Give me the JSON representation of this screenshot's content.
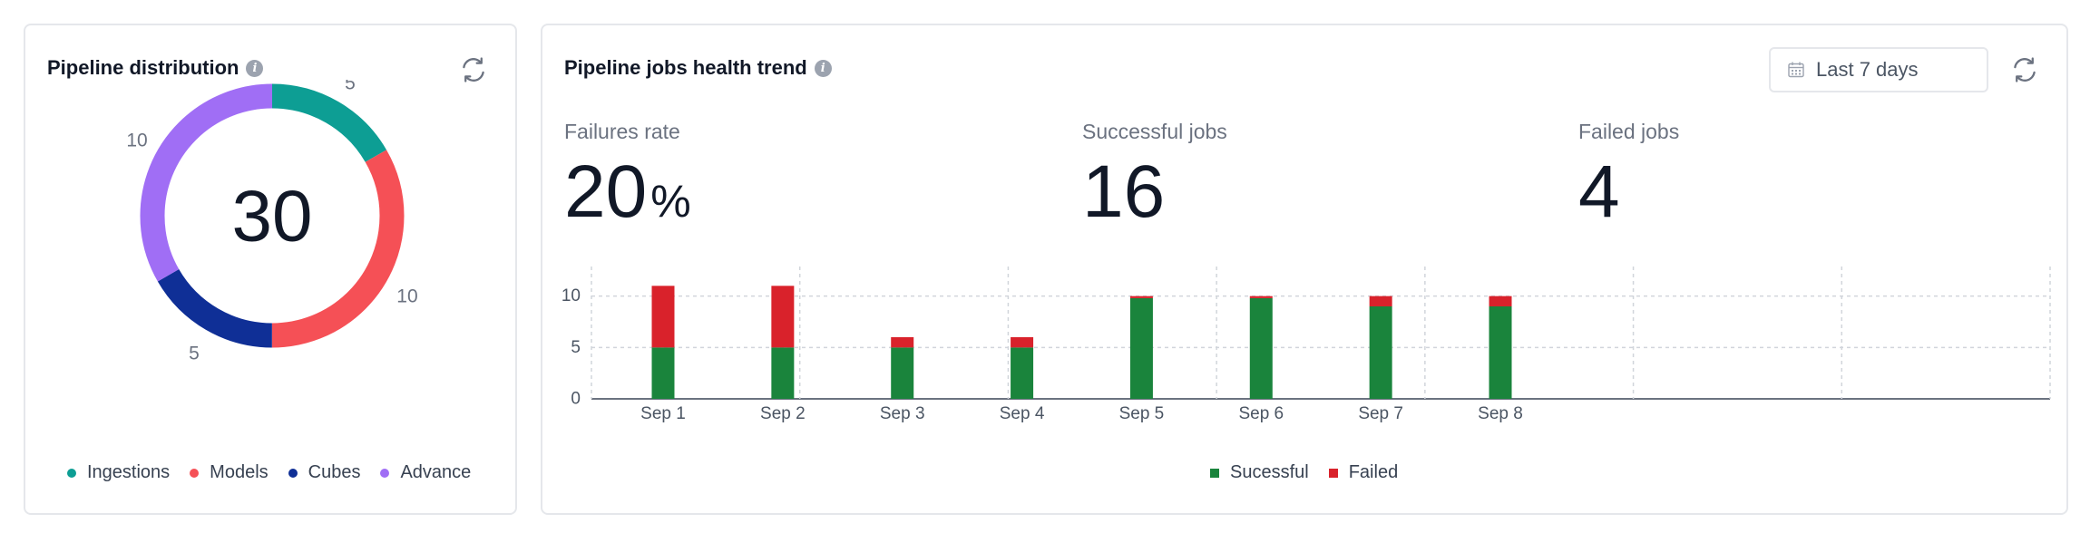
{
  "distribution": {
    "title": "Pipeline distribution",
    "total": "30",
    "legend": [
      {
        "label": "Ingestions",
        "color": "#0d9e94"
      },
      {
        "label": "Models",
        "color": "#f55056"
      },
      {
        "label": "Cubes",
        "color": "#0f2f96"
      },
      {
        "label": "Advance",
        "color": "#a06ef5"
      }
    ],
    "chart_data": {
      "type": "pie",
      "categories": [
        "Ingestions",
        "Models",
        "Cubes",
        "Advance"
      ],
      "values": [
        5,
        10,
        5,
        10
      ],
      "value_labels": [
        "5",
        "10",
        "5",
        "10"
      ],
      "colors": [
        "#0d9e94",
        "#f55056",
        "#0f2f96",
        "#a06ef5"
      ],
      "center_label": "30",
      "donut": true,
      "legend_position": "bottom"
    }
  },
  "trend": {
    "title": "Pipeline jobs health trend",
    "date_range": "Last 7 days",
    "stats": [
      {
        "label": "Failures rate",
        "value": "20",
        "unit": "%"
      },
      {
        "label": "Successful jobs",
        "value": "16",
        "unit": ""
      },
      {
        "label": "Failed jobs",
        "value": "4",
        "unit": ""
      }
    ],
    "chart_data": {
      "type": "bar",
      "stacked": true,
      "categories": [
        "Sep 1",
        "Sep 2",
        "Sep 3",
        "Sep 4",
        "Sep 5",
        "Sep 6",
        "Sep 7",
        "Sep 8"
      ],
      "series": [
        {
          "name": "Sucessful",
          "color": "#1a843c",
          "values": [
            5,
            5,
            5,
            5,
            9.8,
            9.8,
            9,
            9
          ]
        },
        {
          "name": "Failed",
          "color": "#d9222b",
          "values": [
            6,
            6,
            1,
            1,
            0.2,
            0.2,
            1,
            1
          ]
        }
      ],
      "ylim": [
        0,
        15
      ],
      "yticks": [
        "0",
        "5",
        "10",
        "15"
      ],
      "grid": true,
      "legend_position": "bottom"
    }
  }
}
